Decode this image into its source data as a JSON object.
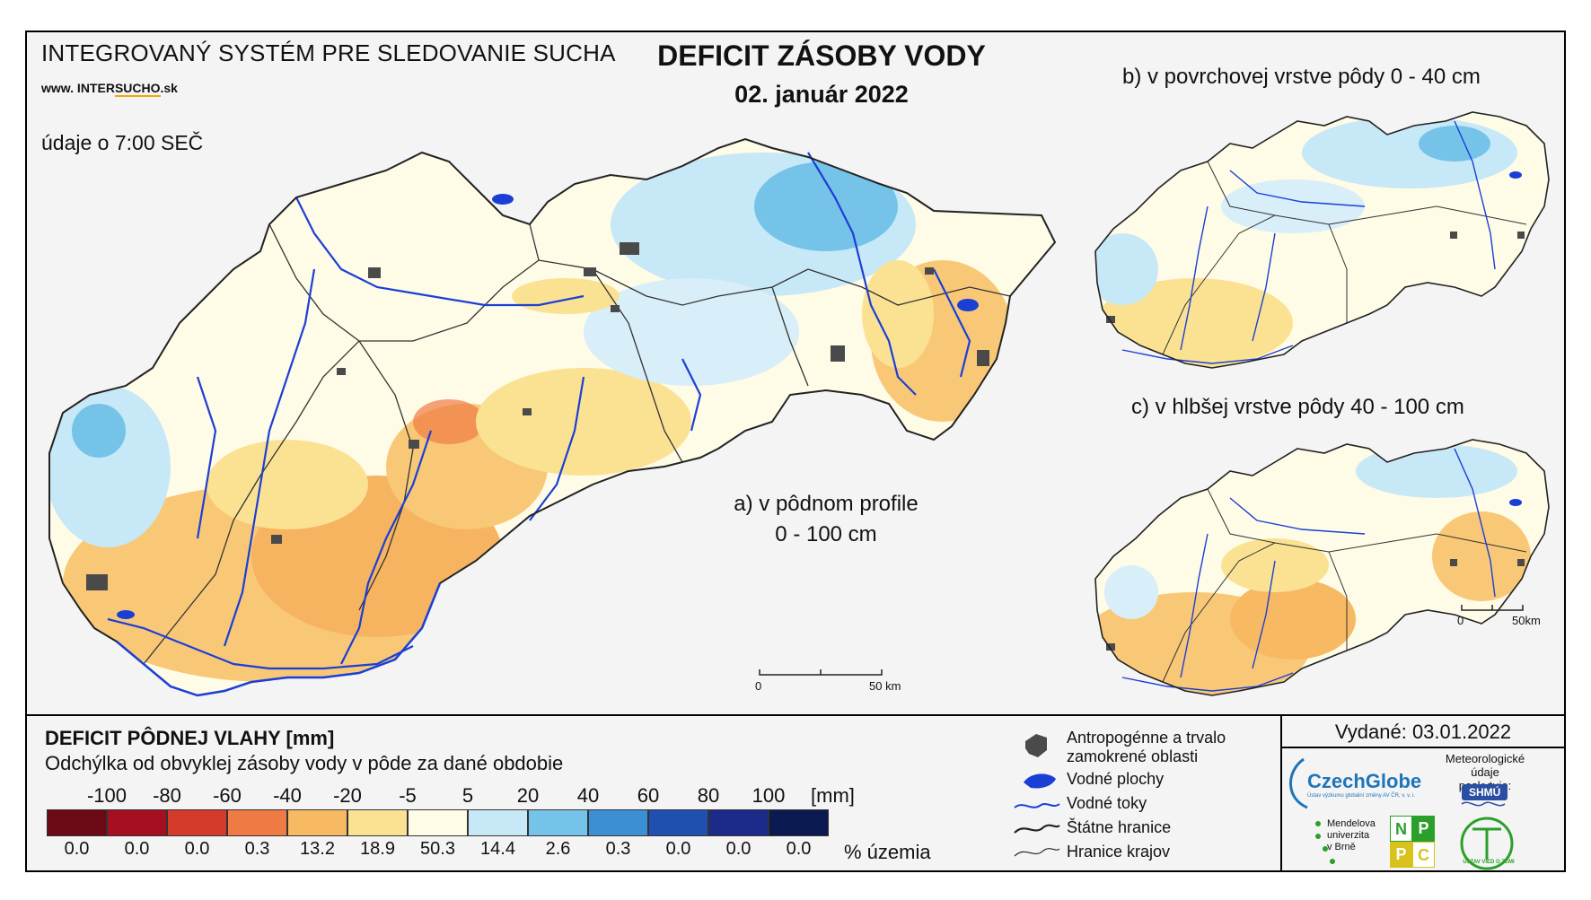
{
  "header": {
    "system_title": "INTEGROVANÝ SYSTÉM PRE SLEDOVANIE SUCHA",
    "url_prefix": "www. INTER",
    "url_brand": "SUCHO",
    "url_suffix": ".sk",
    "data_time": "údaje o 7:00 SEČ",
    "title": "DEFICIT ZÁSOBY VODY",
    "date": "02. január 2022"
  },
  "maps": {
    "a_line1": "a) v pôdnom profile",
    "a_line2": "0 - 100 cm",
    "b": "b) v povrchovej vrstve pôdy 0 - 40 cm",
    "c": "c) v hlbšej vrstve pôdy 40 - 100 cm",
    "scale_main": {
      "zero": "0",
      "end": "50 km"
    },
    "scale_small": {
      "zero": "0",
      "end": "50km"
    }
  },
  "legend": {
    "title": "DEFICIT PÔDNEJ VLAHY [mm]",
    "subtitle": "Odchýlka od obvyklej zásoby vody v pôde za dané obdobie",
    "ticks": [
      "-100",
      "-80",
      "-60",
      "-40",
      "-20",
      "-5",
      "5",
      "20",
      "40",
      "60",
      "80",
      "100"
    ],
    "unit": "[mm]",
    "classes": [
      {
        "color": "#6b0a14",
        "pct": "0.0"
      },
      {
        "color": "#a50f1f",
        "pct": "0.0"
      },
      {
        "color": "#d63a2b",
        "pct": "0.0"
      },
      {
        "color": "#f07a44",
        "pct": "0.3"
      },
      {
        "color": "#f8b963",
        "pct": "13.2"
      },
      {
        "color": "#fbe293",
        "pct": "18.9"
      },
      {
        "color": "#fefbe6",
        "pct": "50.3"
      },
      {
        "color": "#c7e8f7",
        "pct": "14.4"
      },
      {
        "color": "#75c3e8",
        "pct": "2.6"
      },
      {
        "color": "#3c8fd3",
        "pct": "0.3"
      },
      {
        "color": "#1f4fb0",
        "pct": "0.0"
      },
      {
        "color": "#1c2a8a",
        "pct": "0.0"
      },
      {
        "color": "#0b1b52",
        "pct": "0.0"
      }
    ],
    "pct_unit": "% územia"
  },
  "symbols": {
    "anthropogenic": "Antropogénne a trvalo zamokrené oblasti",
    "anthropogenic_line1": "Antropogénne a trvalo",
    "anthropogenic_line2": "zamokrené oblasti",
    "water_bodies": "Vodné plochy",
    "rivers": "Vodné toky",
    "state_border": "Štátne hranice",
    "region_border": "Hranice krajov"
  },
  "footer": {
    "issued": "Vydané: 03.01.2022",
    "czechglobe": "CzechGlobe",
    "czechglobe_sub": "Ústav výzkumu globální změny AV ČR, v. v. i.",
    "met_line1": "Meteorologické",
    "met_line2": "údaje",
    "met_line3": "poskytuje:",
    "shmu": "SHMÚ",
    "mendel_line1": "Mendelova",
    "mendel_line2": "univerzita",
    "mendel_line3": "v Brně",
    "nppc": [
      "N",
      "P",
      "P",
      "C"
    ],
    "uvz": "ÚSTAV VIED O ZEMI"
  },
  "colors": {
    "river": "#1a3fd6",
    "urban": "#4a4a4a",
    "border": "#222222"
  }
}
